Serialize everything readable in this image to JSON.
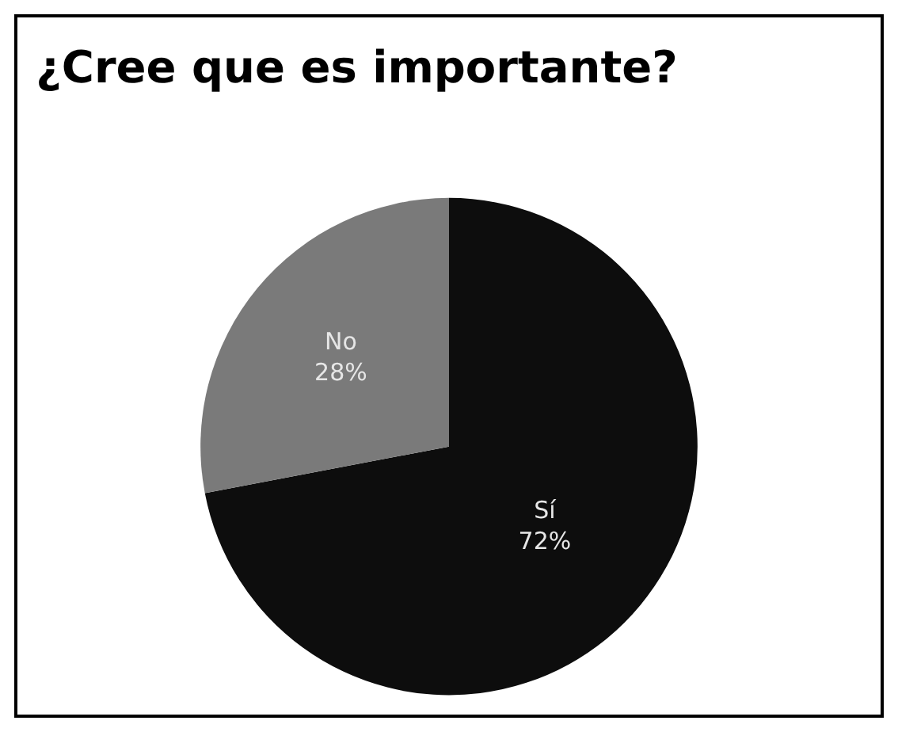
{
  "chart_data": {
    "type": "pie",
    "title": "¿Cree que es importante?",
    "categories": [
      "Sí",
      "No"
    ],
    "values": [
      72,
      28
    ],
    "value_labels": [
      "72%",
      "28%"
    ],
    "colors": [
      "#0d0d0d",
      "#7a7a7a"
    ],
    "legend": false
  }
}
